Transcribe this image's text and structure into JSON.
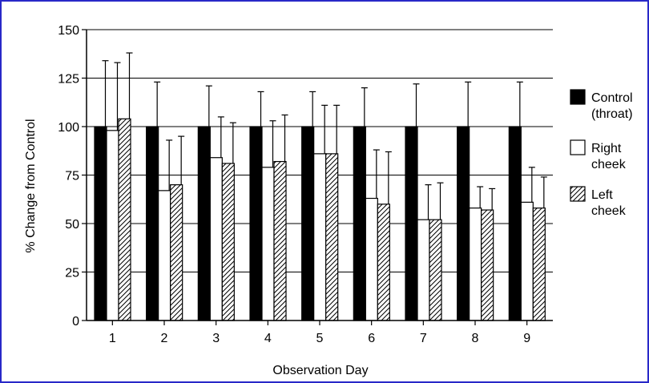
{
  "chart_data": {
    "type": "bar",
    "xlabel": "Observation Day",
    "ylabel": "% Change from Control",
    "categories": [
      "1",
      "2",
      "3",
      "4",
      "5",
      "6",
      "7",
      "8",
      "9"
    ],
    "ylim": [
      0,
      150
    ],
    "yticks": [
      0,
      25,
      50,
      75,
      100,
      125,
      150
    ],
    "grid": "horizontal",
    "legend_position": "right",
    "series": [
      {
        "name": "Control (throat)",
        "fill": "solid",
        "color": "#000000",
        "values": [
          100,
          100,
          100,
          100,
          100,
          100,
          100,
          100,
          100
        ],
        "error_upper": [
          134,
          123,
          121,
          118,
          118,
          120,
          122,
          123,
          123
        ]
      },
      {
        "name": "Right cheek",
        "fill": "open",
        "color": "#ffffff",
        "values": [
          98,
          67,
          84,
          79,
          86,
          63,
          52,
          58,
          61
        ],
        "error_upper": [
          133,
          93,
          105,
          103,
          111,
          88,
          70,
          69,
          79
        ]
      },
      {
        "name": "Left cheek",
        "fill": "hatched",
        "color": "#ffffff",
        "values": [
          104,
          70,
          81,
          82,
          86,
          60,
          52,
          57,
          58
        ],
        "error_upper": [
          138,
          95,
          102,
          106,
          111,
          87,
          71,
          68,
          74
        ]
      }
    ]
  },
  "legend": [
    {
      "line1": "Control",
      "line2": "(throat)"
    },
    {
      "line1": "Right",
      "line2": "cheek"
    },
    {
      "line1": "Left",
      "line2": "cheek"
    }
  ]
}
